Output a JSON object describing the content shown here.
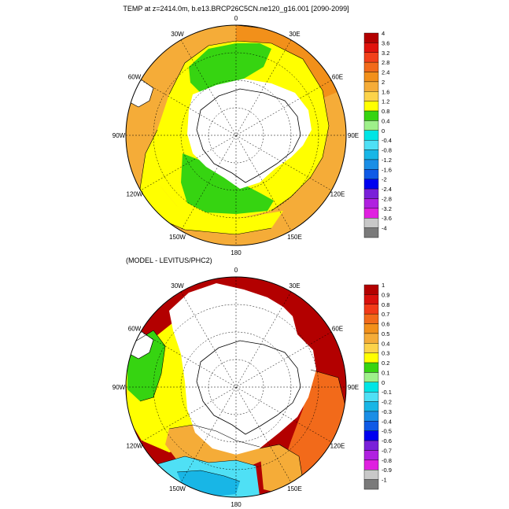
{
  "top_panel": {
    "title": "TEMP at z=2414.0m, b.e13.BRCP26C5CN.ne120_g16.001 [2090-2099]",
    "longitude_labels": [
      {
        "lon": 0,
        "label": "0"
      },
      {
        "lon": 30,
        "label": "30E"
      },
      {
        "lon": 60,
        "label": "60E"
      },
      {
        "lon": 90,
        "label": "90E"
      },
      {
        "lon": 120,
        "label": "120E"
      },
      {
        "lon": 150,
        "label": "150E"
      },
      {
        "lon": 180,
        "label": "180"
      },
      {
        "lon": -150,
        "label": "150W"
      },
      {
        "lon": -120,
        "label": "120W"
      },
      {
        "lon": -90,
        "label": "90W"
      },
      {
        "lon": -60,
        "label": "60W"
      },
      {
        "lon": -30,
        "label": "30W"
      }
    ],
    "colorbar": {
      "labels": [
        "4",
        "3.6",
        "3.2",
        "2.8",
        "2.4",
        "2",
        "1.6",
        "1.2",
        "0.8",
        "0.4",
        "0",
        "-0.4",
        "-0.8",
        "-1.2",
        "-1.6",
        "-2",
        "-2.4",
        "-2.8",
        "-3.2",
        "-3.6",
        "-4"
      ],
      "colors": [
        "#b30000",
        "#e0120c",
        "#f2401a",
        "#f26a1a",
        "#f2901a",
        "#f5ac38",
        "#fcd34a",
        "#ffff00",
        "#36d411",
        "#9ef08a",
        "#00e5e5",
        "#4fe0f5",
        "#18b6e6",
        "#1a8ee6",
        "#0f5ae6",
        "#0000f0",
        "#7a20d9",
        "#b020e0",
        "#e020e0",
        "#c8c8c8",
        "#7a7a7a"
      ]
    }
  },
  "bottom_panel": {
    "title": "(MODEL - LEVITUS/PHC2)",
    "longitude_labels": [
      {
        "lon": 0,
        "label": "0"
      },
      {
        "lon": 30,
        "label": "30E"
      },
      {
        "lon": 60,
        "label": "60E"
      },
      {
        "lon": 90,
        "label": "90E"
      },
      {
        "lon": 120,
        "label": "120E"
      },
      {
        "lon": 150,
        "label": "150E"
      },
      {
        "lon": 180,
        "label": "180"
      },
      {
        "lon": -150,
        "label": "150W"
      },
      {
        "lon": -120,
        "label": "120W"
      },
      {
        "lon": -90,
        "label": "90W"
      },
      {
        "lon": -60,
        "label": "60W"
      },
      {
        "lon": -30,
        "label": "30W"
      }
    ],
    "colorbar": {
      "labels": [
        "1",
        "0.9",
        "0.8",
        "0.7",
        "0.6",
        "0.5",
        "0.4",
        "0.3",
        "0.2",
        "0.1",
        "0",
        "-0.1",
        "-0.2",
        "-0.3",
        "-0.4",
        "-0.5",
        "-0.6",
        "-0.7",
        "-0.8",
        "-0.9",
        "-1"
      ],
      "colors": [
        "#b30000",
        "#d9100c",
        "#f23a18",
        "#f26a1a",
        "#f2901a",
        "#f5ac38",
        "#fcd34a",
        "#ffff00",
        "#36d411",
        "#9ef08a",
        "#00e5e5",
        "#4fe0f5",
        "#18b6e6",
        "#1a8ee6",
        "#0f5ae6",
        "#0000f0",
        "#7a20d9",
        "#b020e0",
        "#e020e0",
        "#c8c8c8",
        "#7a7a7a"
      ]
    }
  }
}
